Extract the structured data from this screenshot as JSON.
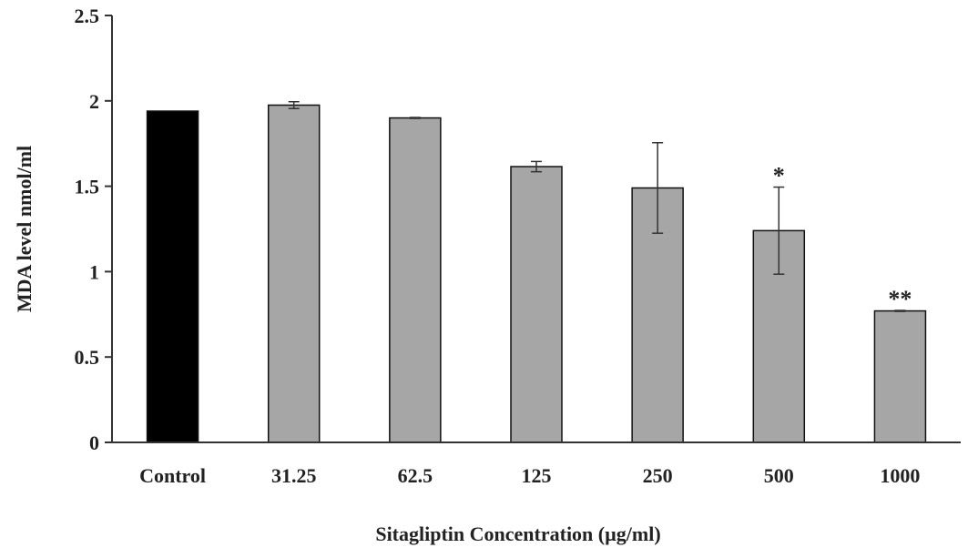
{
  "chart_data": {
    "type": "bar",
    "title": "",
    "xlabel": "Sitagliptin Concentration (µg/ml)",
    "ylabel": "MDA level nmol/ml",
    "ylim": [
      0,
      2.5
    ],
    "yticks": [
      "0",
      "0.5",
      "1",
      "1.5",
      "2",
      "2.5"
    ],
    "ytick_values": [
      0,
      0.5,
      1,
      1.5,
      2,
      2.5
    ],
    "categories": [
      "Control",
      "31.25",
      "62.5",
      "125",
      "250",
      "500",
      "1000"
    ],
    "values": [
      1.94,
      1.975,
      1.9,
      1.615,
      1.49,
      1.24,
      0.77
    ],
    "errors": [
      0,
      0.02,
      0.003,
      0.03,
      0.265,
      0.255,
      0.003
    ],
    "annotations": [
      "",
      "",
      "",
      "",
      "",
      "*",
      "**"
    ],
    "colors": {
      "control_bar": "#000000",
      "treatment_bar": "#a6a6a6",
      "bar_edge": "#111111",
      "axis": "#333333"
    },
    "grid": false,
    "legend": "none"
  }
}
